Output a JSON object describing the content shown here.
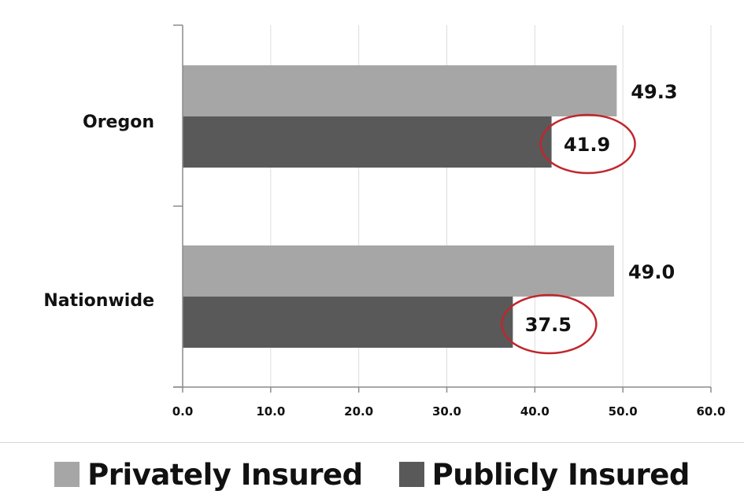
{
  "chart_data": {
    "type": "bar",
    "orientation": "horizontal",
    "categories": [
      "Oregon",
      "Nationwide"
    ],
    "series": [
      {
        "name": "Privately Insured",
        "values": [
          49.3,
          49.0
        ],
        "labels": [
          "49.3",
          "49.0"
        ],
        "color": "#a6a6a6"
      },
      {
        "name": "Publicly Insured",
        "values": [
          41.9,
          37.5
        ],
        "labels": [
          "41.9",
          "37.5"
        ],
        "color": "#595959"
      }
    ],
    "xlim": [
      0,
      60
    ],
    "xticks": [
      0,
      10,
      20,
      30,
      40,
      50,
      60
    ],
    "xtick_labels": [
      "0.0",
      "10.0",
      "20.0",
      "30.0",
      "40.0",
      "50.0",
      "60.0"
    ],
    "grid": true,
    "legend_position": "bottom",
    "highlight_circles": {
      "series": "Publicly Insured",
      "color": "#c0262c"
    }
  }
}
